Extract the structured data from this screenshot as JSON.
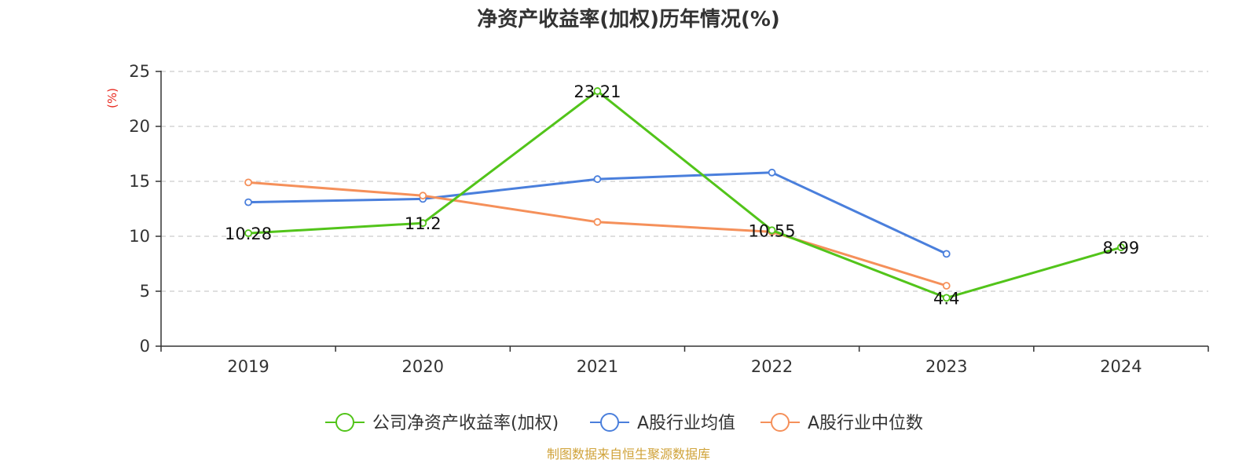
{
  "chart_data": {
    "type": "line",
    "title": "净资产收益率(加权)历年情况(%)",
    "ylabel": "(%)",
    "xlabel": "",
    "categories": [
      "2019",
      "2020",
      "2021",
      "2022",
      "2023",
      "2024"
    ],
    "ylim": [
      0,
      25
    ],
    "yticks": [
      0,
      5,
      10,
      15,
      20,
      25
    ],
    "grid": true,
    "legend_position": "bottom",
    "series": [
      {
        "name": "公司净资产收益率(加权)",
        "color": "#52c41a",
        "values": [
          10.28,
          11.2,
          23.21,
          10.55,
          4.4,
          8.99
        ],
        "labels": [
          "10.28",
          "11.2",
          "23.21",
          "10.55",
          "4.4",
          "8.99"
        ]
      },
      {
        "name": "A股行业均值",
        "color": "#4a7fdc",
        "values": [
          13.1,
          13.4,
          15.2,
          15.8,
          8.4,
          null
        ]
      },
      {
        "name": "A股行业中位数",
        "color": "#f5905a",
        "values": [
          14.9,
          13.7,
          11.3,
          10.4,
          5.5,
          null
        ]
      }
    ]
  },
  "source": {
    "text": "制图数据来自恒生聚源数据库",
    "color": "#d0a33a"
  },
  "ylabel_color": "#e8281e"
}
